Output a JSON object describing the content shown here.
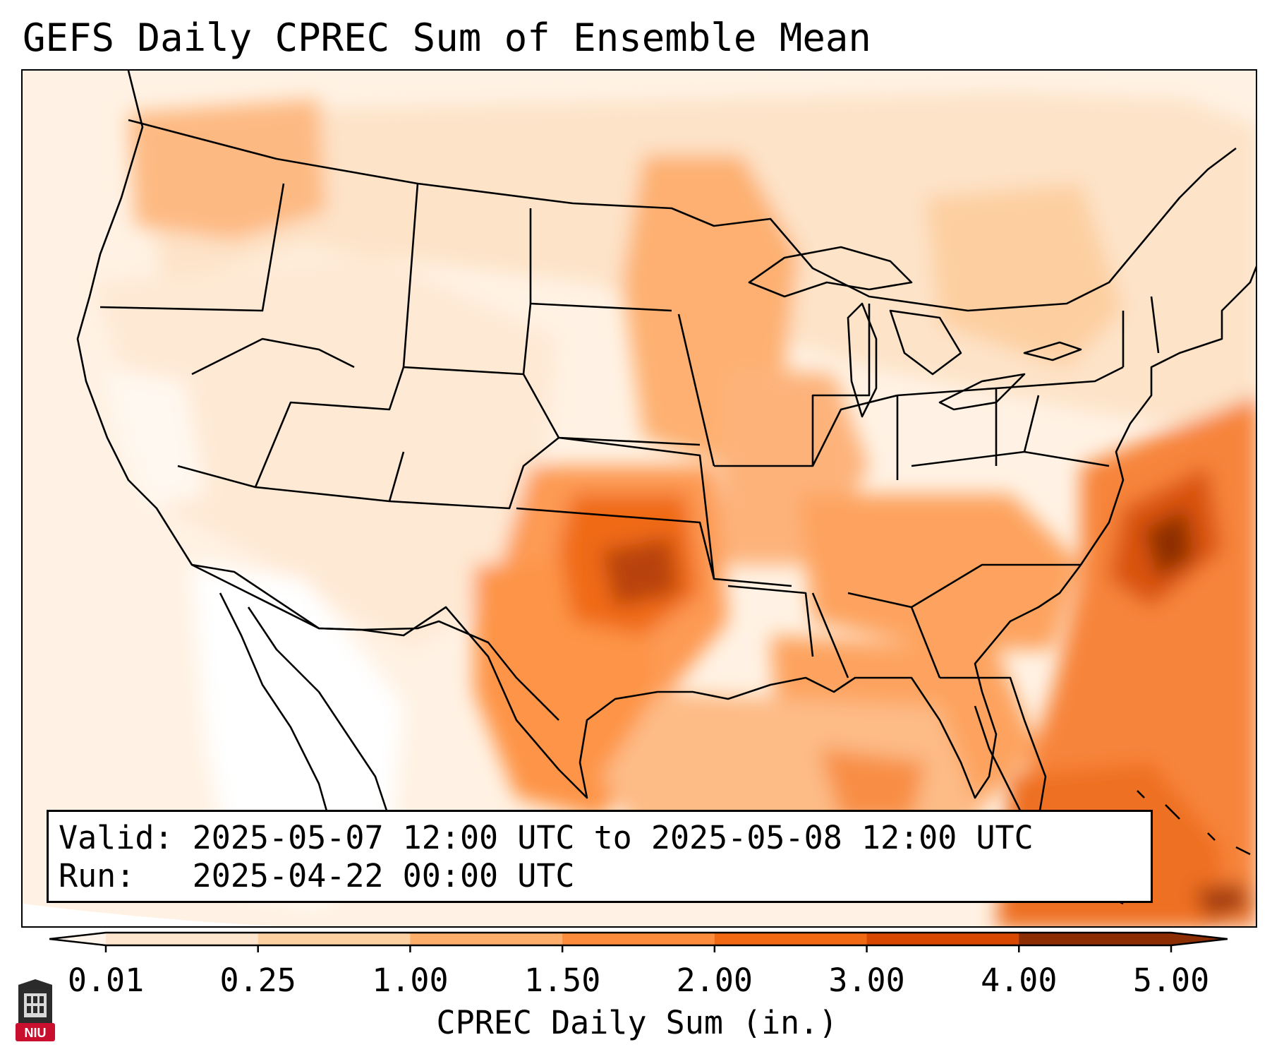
{
  "title": "GEFS Daily CPREC Sum of Ensemble Mean",
  "info": {
    "valid_label": "Valid:",
    "valid_value": "2025-05-07 12:00 UTC to 2025-05-08 12:00 UTC",
    "run_label": "Run:",
    "run_value": "2025-04-22 00:00 UTC"
  },
  "colorbar": {
    "label": "CPREC Daily Sum (in.)",
    "ticks": [
      "0.01",
      "0.25",
      "1.00",
      "1.50",
      "2.00",
      "3.00",
      "4.00",
      "5.00"
    ],
    "colors": [
      "#fff5eb",
      "#fee6ce",
      "#fdd0a2",
      "#fdae6b",
      "#fd8d3c",
      "#f16913",
      "#d94801",
      "#8c2d04"
    ],
    "extend": "both"
  },
  "logo": {
    "text": "NIU",
    "color": "#c8102e"
  }
}
